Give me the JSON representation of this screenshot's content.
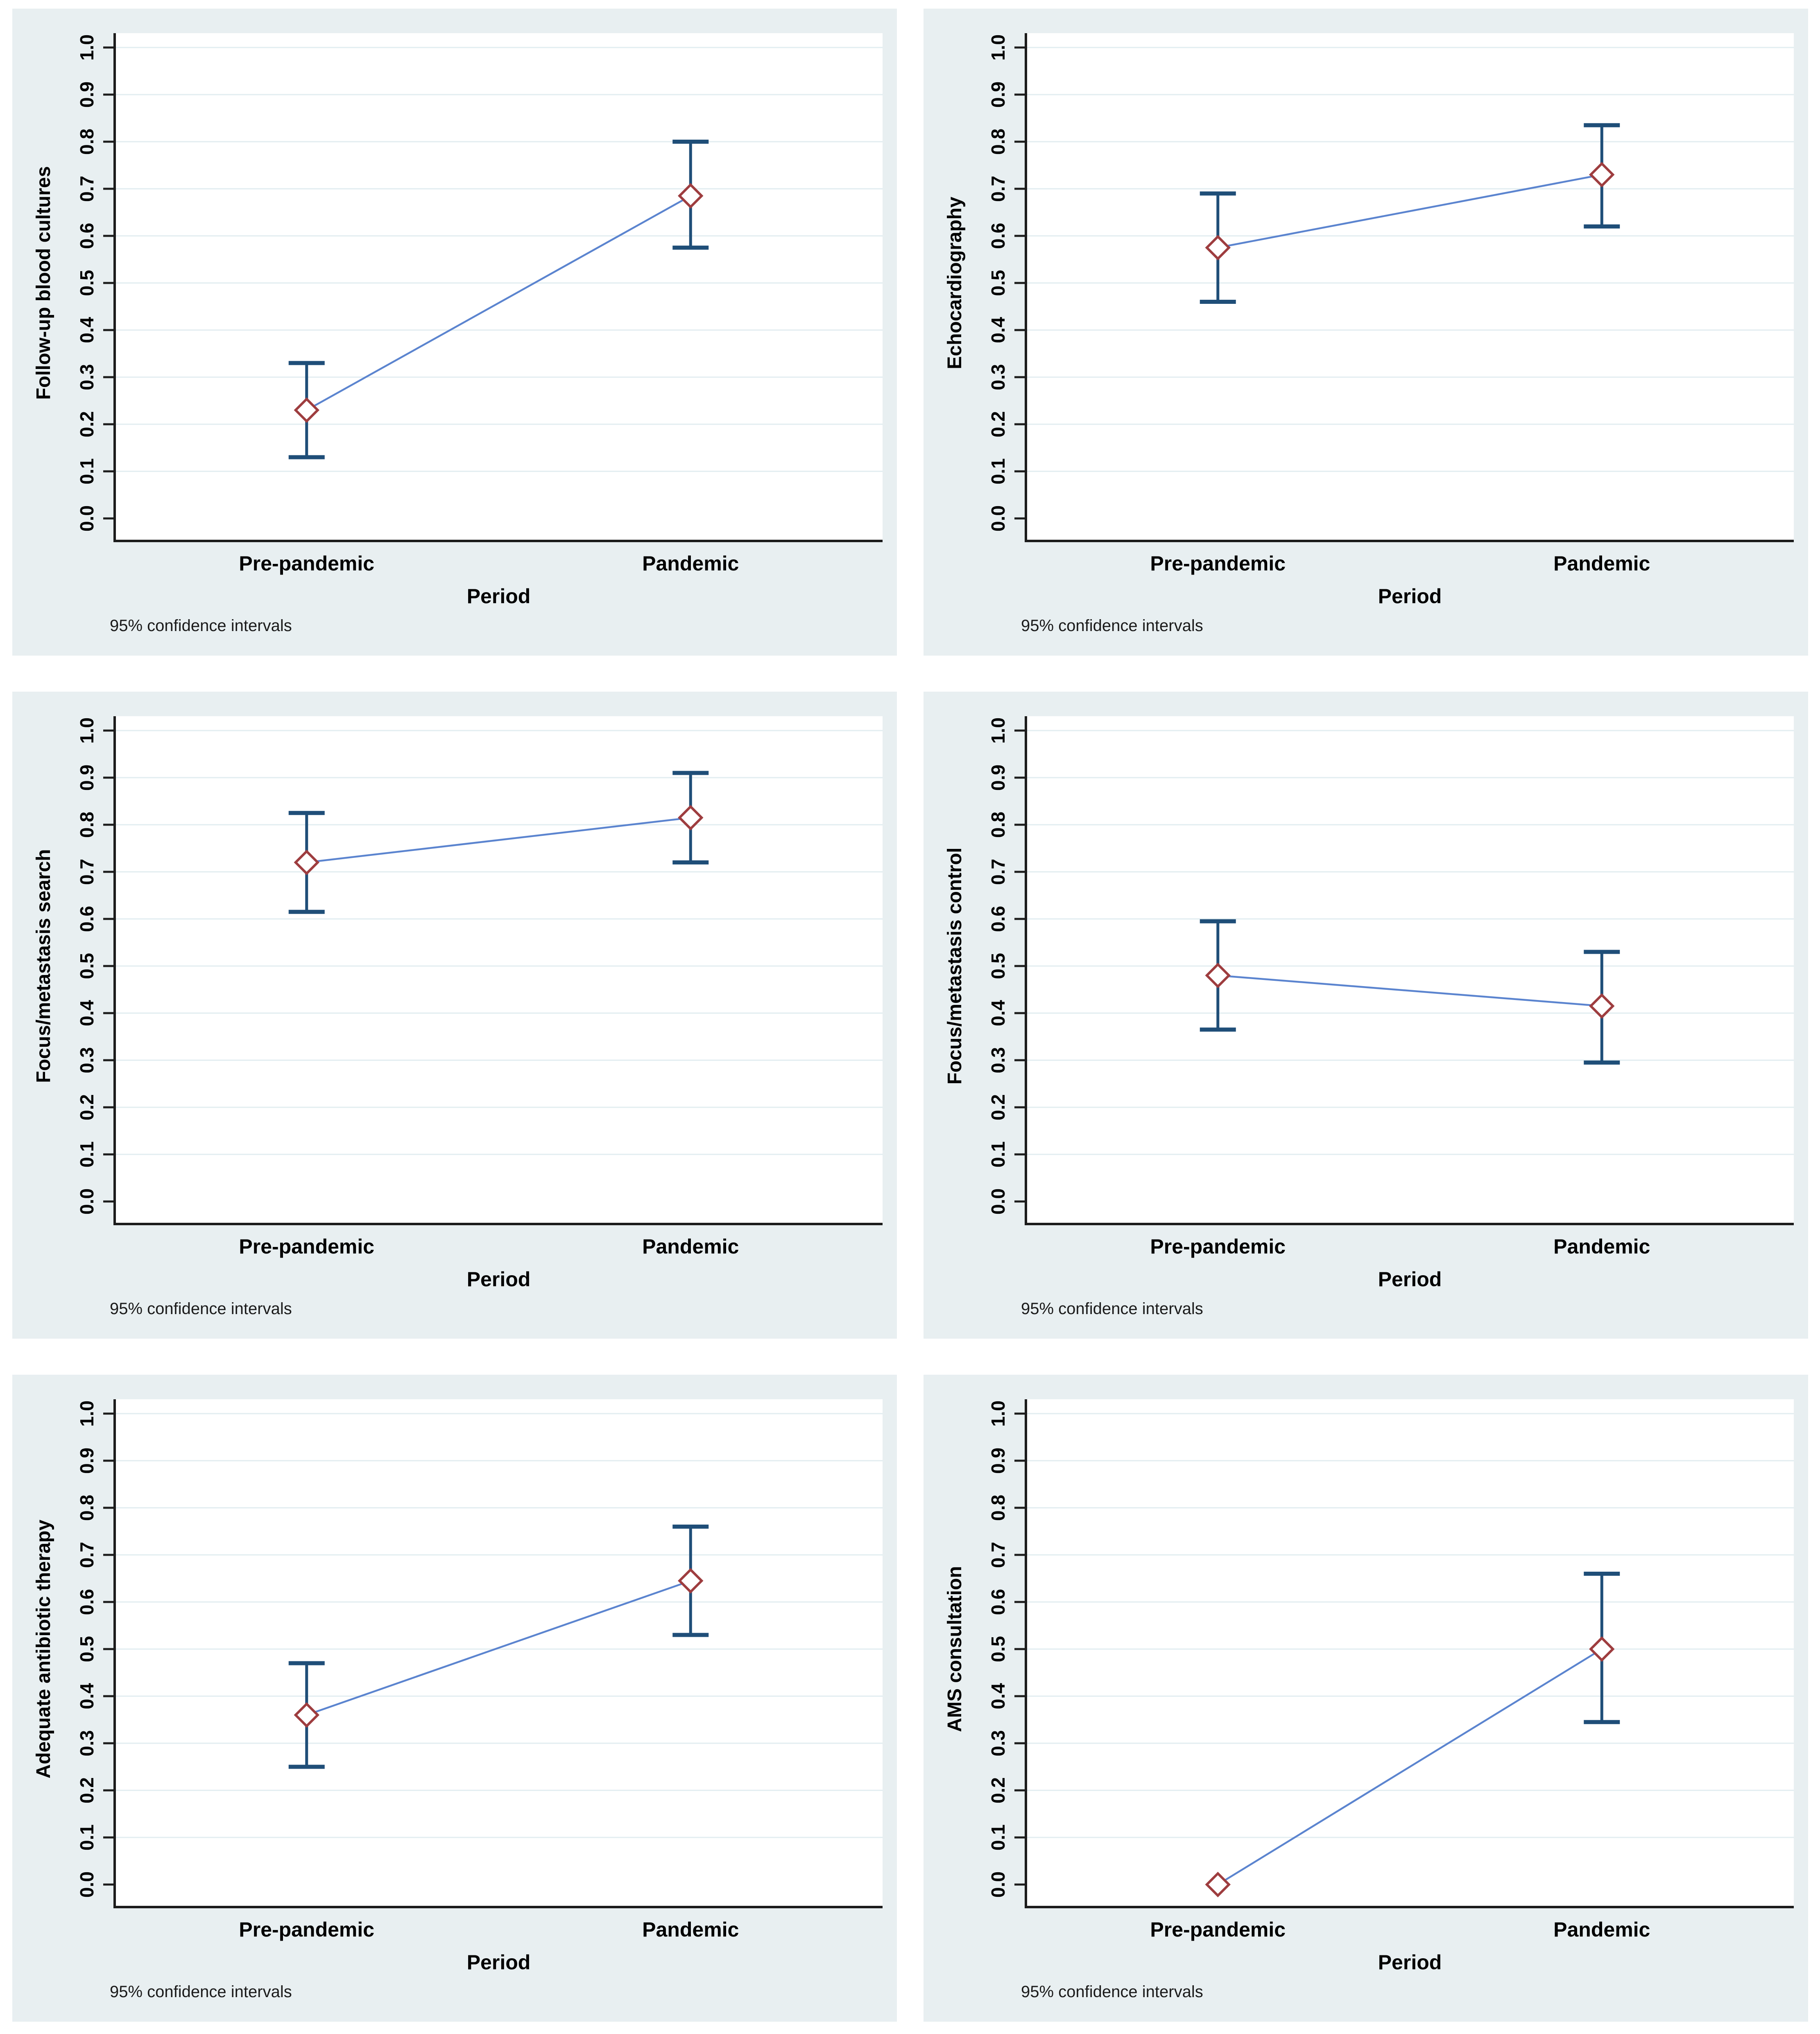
{
  "figure": {
    "note": "95% confidence intervals",
    "xlabel": "Period",
    "categories": [
      "Pre-pandemic",
      "Pandemic"
    ],
    "ytick_labels": [
      "0.0",
      "0.1",
      "0.2",
      "0.3",
      "0.4",
      "0.5",
      "0.6",
      "0.7",
      "0.8",
      "0.9",
      "1.0"
    ]
  },
  "colors": {
    "panel_bg": "#e8eff1",
    "plot_bg": "#ffffff",
    "grid_line": "#e2edf0",
    "axis_line": "#1c1c1c",
    "ci_bar": "#1f4e78",
    "connect_line": "#5b84cf",
    "marker_stroke": "#9e3d3f",
    "marker_fill": "#ffffff",
    "text": "#000000",
    "note_text": "#1a1a1a"
  },
  "chart_data": [
    {
      "type": "line",
      "ylabel": "Follow-up blood cultures",
      "xlabel": "Period",
      "note": "95% confidence intervals",
      "categories": [
        "Pre-pandemic",
        "Pandemic"
      ],
      "ylim": [
        0.0,
        1.0
      ],
      "ytick_step": 0.1,
      "grid": true,
      "points": [
        {
          "x": "Pre-pandemic",
          "y": 0.23,
          "ci": [
            0.13,
            0.33
          ]
        },
        {
          "x": "Pandemic",
          "y": 0.685,
          "ci": [
            0.575,
            0.8
          ]
        }
      ]
    },
    {
      "type": "line",
      "ylabel": "Echocardiography",
      "xlabel": "Period",
      "note": "95% confidence intervals",
      "categories": [
        "Pre-pandemic",
        "Pandemic"
      ],
      "ylim": [
        0.0,
        1.0
      ],
      "ytick_step": 0.1,
      "grid": true,
      "points": [
        {
          "x": "Pre-pandemic",
          "y": 0.575,
          "ci": [
            0.46,
            0.69
          ]
        },
        {
          "x": "Pandemic",
          "y": 0.73,
          "ci": [
            0.62,
            0.835
          ]
        }
      ]
    },
    {
      "type": "line",
      "ylabel": "Focus/metastasis search",
      "xlabel": "Period",
      "note": "95% confidence intervals",
      "categories": [
        "Pre-pandemic",
        "Pandemic"
      ],
      "ylim": [
        0.0,
        1.0
      ],
      "ytick_step": 0.1,
      "grid": true,
      "points": [
        {
          "x": "Pre-pandemic",
          "y": 0.72,
          "ci": [
            0.615,
            0.825
          ]
        },
        {
          "x": "Pandemic",
          "y": 0.815,
          "ci": [
            0.72,
            0.91
          ]
        }
      ]
    },
    {
      "type": "line",
      "ylabel": "Focus/metastasis control",
      "xlabel": "Period",
      "note": "95% confidence intervals",
      "categories": [
        "Pre-pandemic",
        "Pandemic"
      ],
      "ylim": [
        0.0,
        1.0
      ],
      "ytick_step": 0.1,
      "grid": true,
      "points": [
        {
          "x": "Pre-pandemic",
          "y": 0.48,
          "ci": [
            0.365,
            0.595
          ]
        },
        {
          "x": "Pandemic",
          "y": 0.415,
          "ci": [
            0.295,
            0.53
          ]
        }
      ]
    },
    {
      "type": "line",
      "ylabel": "Adequate antibiotic therapy",
      "xlabel": "Period",
      "note": "95% confidence intervals",
      "categories": [
        "Pre-pandemic",
        "Pandemic"
      ],
      "ylim": [
        0.0,
        1.0
      ],
      "ytick_step": 0.1,
      "grid": true,
      "points": [
        {
          "x": "Pre-pandemic",
          "y": 0.36,
          "ci": [
            0.25,
            0.47
          ]
        },
        {
          "x": "Pandemic",
          "y": 0.645,
          "ci": [
            0.53,
            0.76
          ]
        }
      ]
    },
    {
      "type": "line",
      "ylabel": "AMS consultation",
      "xlabel": "Period",
      "note": "95% confidence intervals",
      "categories": [
        "Pre-pandemic",
        "Pandemic"
      ],
      "ylim": [
        0.0,
        1.0
      ],
      "ytick_step": 0.1,
      "grid": true,
      "points": [
        {
          "x": "Pre-pandemic",
          "y": 0.0,
          "ci": [
            0.0,
            0.0
          ]
        },
        {
          "x": "Pandemic",
          "y": 0.5,
          "ci": [
            0.345,
            0.66
          ]
        }
      ]
    }
  ]
}
